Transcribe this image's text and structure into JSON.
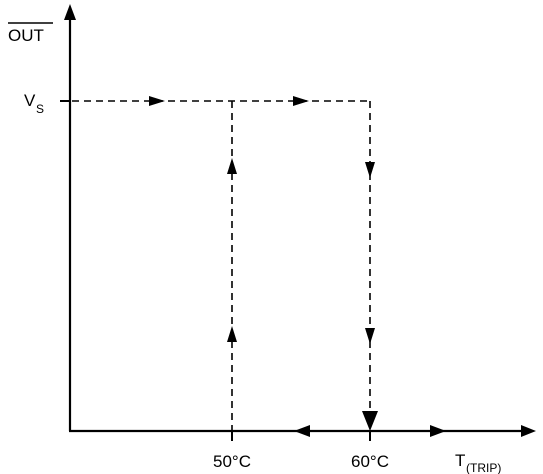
{
  "y_axis": {
    "label": "OUT",
    "overbar": true,
    "level_label": {
      "main": "V",
      "subscript": "S"
    }
  },
  "x_axis": {
    "label": {
      "main": "T",
      "subscript": "(TRIP)"
    },
    "ticks": [
      "50°C",
      "60°C"
    ]
  },
  "colors": {
    "line": "#000000",
    "background": "#ffffff"
  }
}
